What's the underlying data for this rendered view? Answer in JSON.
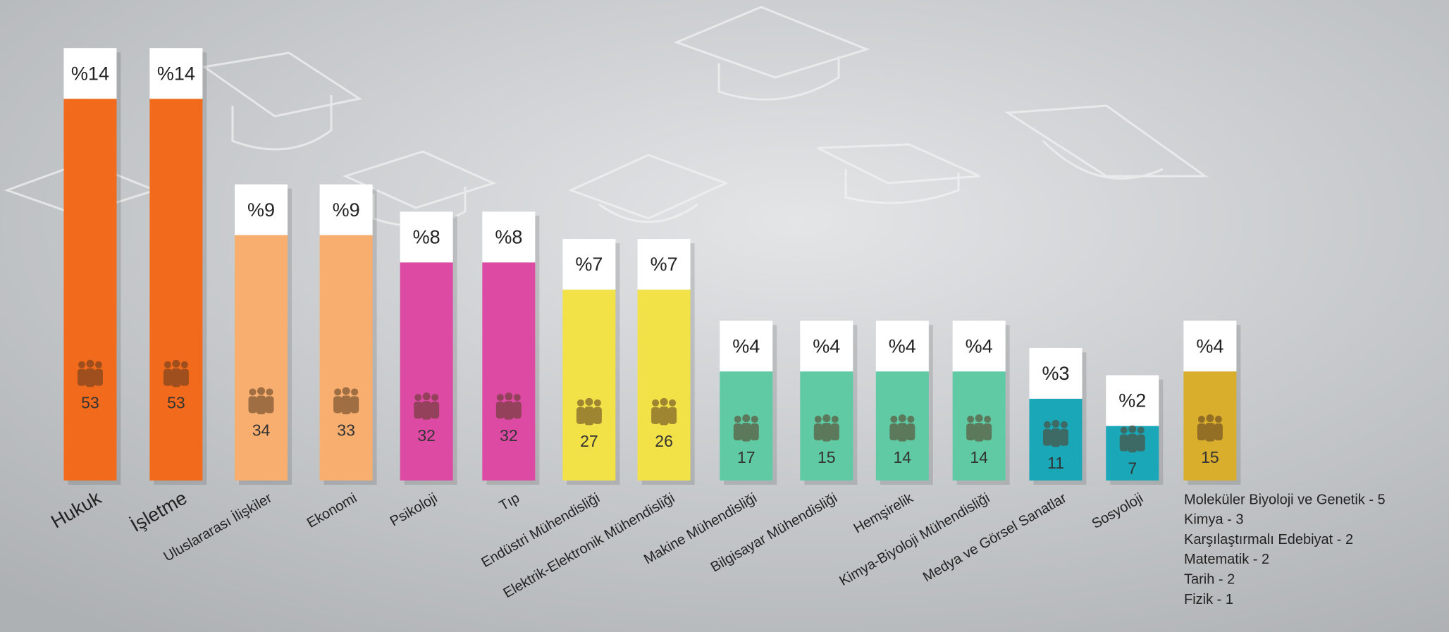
{
  "chart_data": {
    "type": "bar",
    "categories": [
      "Hukuk",
      "İşletme",
      "Uluslararası İlişkiler",
      "Ekonomi",
      "Psikoloji",
      "Tıp",
      "Endüstri Mühendisliği",
      "Elektrik-Elektronik Mühendisliği",
      "Makine Mühendisliği",
      "Bilgisayar Mühendisliği",
      "Hemşirelik",
      "Kimya-Biyoloji Mühendisliği",
      "Medya ve Görsel Sanatlar",
      "Sosyoloji",
      null
    ],
    "values": [
      53,
      53,
      34,
      33,
      32,
      32,
      27,
      26,
      17,
      15,
      14,
      14,
      11,
      7,
      15
    ],
    "shares": [
      14,
      14,
      9,
      9,
      8,
      8,
      7,
      7,
      4,
      4,
      4,
      4,
      3,
      2,
      4
    ],
    "share_labels": [
      "%14",
      "%14",
      "%9",
      "%9",
      "%8",
      "%8",
      "%7",
      "%7",
      "%4",
      "%4",
      "%4",
      "%4",
      "%3",
      "%2",
      "%4"
    ],
    "colors": [
      "#f26a1b",
      "#f26a1b",
      "#f7ae6f",
      "#f7ae6f",
      "#dd4aa4",
      "#dd4aa4",
      "#f2e247",
      "#f2e247",
      "#5fcaa4",
      "#5fcaa4",
      "#5fcaa4",
      "#5fcaa4",
      "#1aa7b8",
      "#1aa7b8",
      "#d9ae2c"
    ],
    "others": [
      "Moleküler Biyoloji ve Genetik - 5",
      "Kimya - 3",
      "Karşılaştırmalı Edebiyat - 2",
      "Matematik - 2",
      "Tarih - 2",
      "Fizik - 1"
    ]
  }
}
